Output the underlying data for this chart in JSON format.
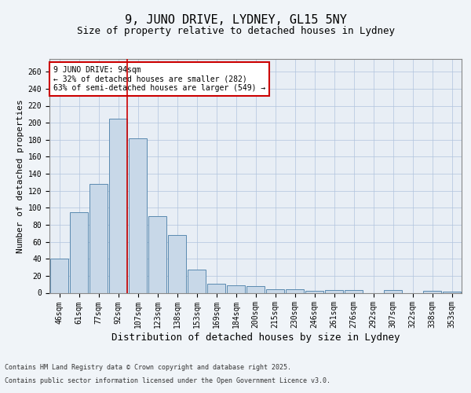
{
  "title_line1": "9, JUNO DRIVE, LYDNEY, GL15 5NY",
  "title_line2": "Size of property relative to detached houses in Lydney",
  "xlabel": "Distribution of detached houses by size in Lydney",
  "ylabel": "Number of detached properties",
  "categories": [
    "46sqm",
    "61sqm",
    "77sqm",
    "92sqm",
    "107sqm",
    "123sqm",
    "138sqm",
    "153sqm",
    "169sqm",
    "184sqm",
    "200sqm",
    "215sqm",
    "230sqm",
    "246sqm",
    "261sqm",
    "276sqm",
    "292sqm",
    "307sqm",
    "322sqm",
    "338sqm",
    "353sqm"
  ],
  "values": [
    40,
    95,
    128,
    205,
    182,
    90,
    68,
    27,
    11,
    9,
    8,
    4,
    4,
    2,
    3,
    3,
    0,
    3,
    0,
    2,
    1
  ],
  "bar_color": "#c8d8e8",
  "bar_edge_color": "#5a8ab0",
  "vline_x_index": 3,
  "vline_color": "#cc0000",
  "annotation_text": "9 JUNO DRIVE: 94sqm\n← 32% of detached houses are smaller (282)\n63% of semi-detached houses are larger (549) →",
  "annotation_box_color": "#ffffff",
  "annotation_box_edge_color": "#cc0000",
  "ylim": [
    0,
    275
  ],
  "yticks": [
    0,
    20,
    40,
    60,
    80,
    100,
    120,
    140,
    160,
    180,
    200,
    220,
    240,
    260
  ],
  "grid_color": "#b0c4de",
  "background_color": "#e8eef5",
  "fig_background_color": "#f0f4f8",
  "footer_line1": "Contains HM Land Registry data © Crown copyright and database right 2025.",
  "footer_line2": "Contains public sector information licensed under the Open Government Licence v3.0.",
  "title_fontsize": 11,
  "subtitle_fontsize": 9,
  "axis_label_fontsize": 8,
  "tick_fontsize": 7,
  "annotation_fontsize": 7,
  "footer_fontsize": 6
}
